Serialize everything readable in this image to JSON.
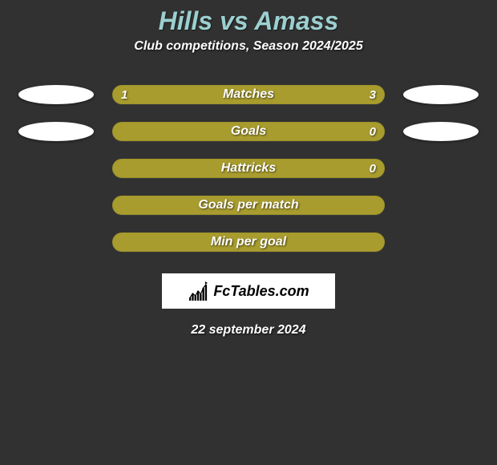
{
  "title": {
    "player1": "Hills",
    "vs": "vs",
    "player2": "Amass"
  },
  "subtitle": "Club competitions, Season 2024/2025",
  "colors": {
    "background": "#313131",
    "title_text": "#9cd0d0",
    "avatar_left": "#ffffff",
    "avatar_right": "#ffffff",
    "bar_left_fill": "#a89c2e",
    "bar_right_fill": "#a89c2e",
    "bar_empty": "#a89c2e",
    "bar_border": "#a0942a"
  },
  "bars": [
    {
      "label": "Matches",
      "left_value": "1",
      "right_value": "3",
      "left_pct": 25,
      "right_pct": 75,
      "show_left_avatar": true,
      "show_right_avatar": true
    },
    {
      "label": "Goals",
      "left_value": "",
      "right_value": "0",
      "left_pct": 100,
      "right_pct": 0,
      "show_left_avatar": true,
      "show_right_avatar": true
    },
    {
      "label": "Hattricks",
      "left_value": "",
      "right_value": "0",
      "left_pct": 100,
      "right_pct": 0,
      "show_left_avatar": false,
      "show_right_avatar": false
    },
    {
      "label": "Goals per match",
      "left_value": "",
      "right_value": "",
      "left_pct": 100,
      "right_pct": 0,
      "show_left_avatar": false,
      "show_right_avatar": false
    },
    {
      "label": "Min per goal",
      "left_value": "",
      "right_value": "",
      "left_pct": 100,
      "right_pct": 0,
      "show_left_avatar": false,
      "show_right_avatar": false
    }
  ],
  "brand": "FcTables.com",
  "date": "22 september 2024",
  "chart_icon": {
    "bars": [
      4,
      9,
      6,
      12,
      8,
      16,
      20
    ],
    "color": "#000000"
  }
}
